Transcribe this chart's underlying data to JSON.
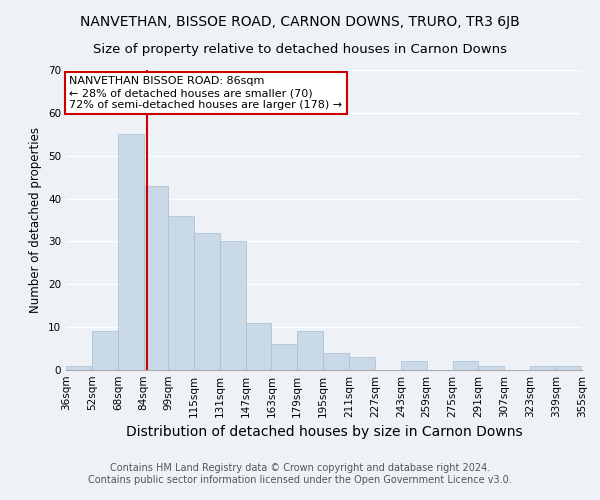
{
  "title": "NANVETHAN, BISSOE ROAD, CARNON DOWNS, TRURO, TR3 6JB",
  "subtitle": "Size of property relative to detached houses in Carnon Downs",
  "xlabel": "Distribution of detached houses by size in Carnon Downs",
  "ylabel": "Number of detached properties",
  "bar_values": [
    1,
    9,
    55,
    43,
    36,
    32,
    30,
    11,
    6,
    9,
    4,
    3,
    0,
    2,
    0,
    2,
    1,
    0,
    1,
    1
  ],
  "bin_labels": [
    "36sqm",
    "52sqm",
    "68sqm",
    "84sqm",
    "99sqm",
    "115sqm",
    "131sqm",
    "147sqm",
    "163sqm",
    "179sqm",
    "195sqm",
    "211sqm",
    "227sqm",
    "243sqm",
    "259sqm",
    "275sqm",
    "291sqm",
    "307sqm",
    "323sqm",
    "339sqm",
    "355sqm"
  ],
  "bar_color": "#c9d9e8",
  "bar_edge_color": "#a8bece",
  "vline_x": 86,
  "vline_color": "#cc0000",
  "ylim": [
    0,
    70
  ],
  "yticks": [
    0,
    10,
    20,
    30,
    40,
    50,
    60,
    70
  ],
  "annotation_title": "NANVETHAN BISSOE ROAD: 86sqm",
  "annotation_line1": "← 28% of detached houses are smaller (70)",
  "annotation_line2": "72% of semi-detached houses are larger (178) →",
  "annotation_box_color": "#ffffff",
  "annotation_box_edge": "#cc0000",
  "footer_line1": "Contains HM Land Registry data © Crown copyright and database right 2024.",
  "footer_line2": "Contains public sector information licensed under the Open Government Licence v3.0.",
  "background_color": "#eef2f7",
  "grid_color": "#ffffff",
  "title_fontsize": 10,
  "subtitle_fontsize": 9.5,
  "xlabel_fontsize": 10,
  "ylabel_fontsize": 8.5,
  "tick_fontsize": 7.5,
  "annotation_fontsize": 8,
  "footer_fontsize": 7
}
